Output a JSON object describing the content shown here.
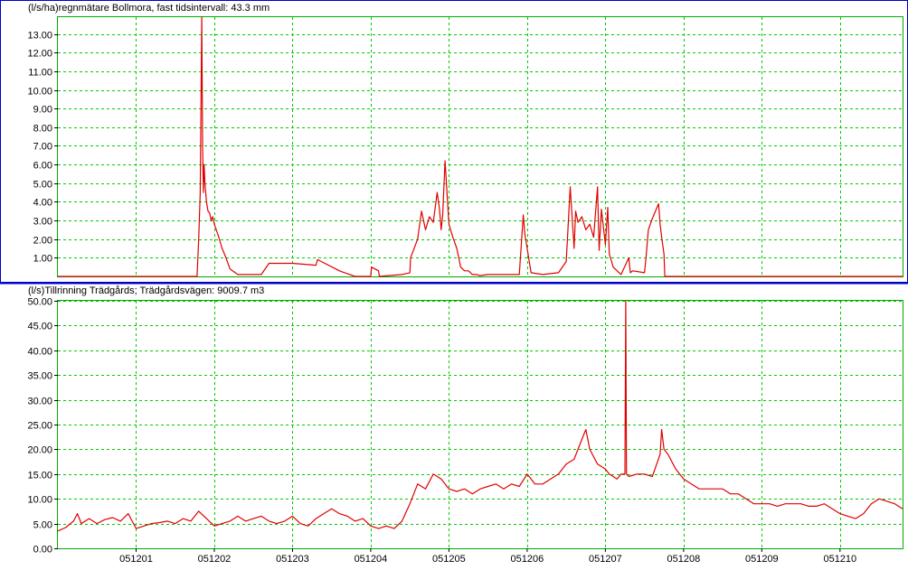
{
  "x_ticks": [
    "051201",
    "051202",
    "051203",
    "051204",
    "051205",
    "051206",
    "051207",
    "051208",
    "051209",
    "051210"
  ],
  "colors": {
    "series": "#e00000",
    "grid": "#00cc00",
    "panel_border": "#0000cc",
    "plot_frame": "#00aa00",
    "background": "#ffffff"
  },
  "chart_data": [
    {
      "type": "line",
      "title": "(l/s/ha)regnmätare Bollmora, fast tidsintervall: 43.3 mm",
      "xlabel": "",
      "ylabel": "l/s/ha",
      "xlim": [
        0,
        10.8
      ],
      "ylim": [
        0,
        13.9
      ],
      "yticks": [
        1,
        2,
        3,
        4,
        5,
        6,
        7,
        8,
        9,
        10,
        11,
        12,
        13
      ],
      "ytick_labels": [
        "1.00",
        "2.00",
        "3.00",
        "4.00",
        "5.00",
        "6.00",
        "7.00",
        "8.00",
        "9.00",
        "10.00",
        "11.00",
        "12.00",
        "13.00"
      ],
      "grid": true,
      "series": [
        {
          "x": [
            0,
            1.78,
            1.8,
            1.82,
            1.84,
            1.85,
            1.86,
            1.87,
            1.88,
            1.9,
            1.92,
            1.94,
            1.96,
            1.98,
            2.0,
            2.05,
            2.1,
            2.15,
            2.2,
            2.3,
            2.6,
            2.7,
            3.0,
            3.3,
            3.32,
            3.6,
            3.8,
            4.0,
            4.01,
            4.1,
            4.11,
            4.4,
            4.5,
            4.51,
            4.6,
            4.65,
            4.7,
            4.75,
            4.8,
            4.85,
            4.88,
            4.9,
            4.92,
            4.95,
            5.0,
            5.05,
            5.1,
            5.15,
            5.2,
            5.25,
            5.3,
            5.35,
            5.4,
            5.5,
            5.7,
            5.9,
            5.95,
            5.97,
            6.0,
            6.05,
            6.2,
            6.4,
            6.5,
            6.55,
            6.6,
            6.62,
            6.65,
            6.7,
            6.75,
            6.8,
            6.85,
            6.9,
            6.92,
            6.95,
            7.0,
            7.03,
            7.05,
            7.08,
            7.1,
            7.15,
            7.2,
            7.3,
            7.32,
            7.35,
            7.5,
            7.52,
            7.55,
            7.6,
            7.68,
            7.7,
            7.72,
            7.75,
            7.76,
            8.0,
            9.0,
            10.0,
            10.8
          ],
          "y": [
            0,
            0,
            2,
            4.5,
            13.9,
            7,
            4.5,
            6,
            5,
            4,
            3.5,
            3.4,
            3,
            3.2,
            2.8,
            2.2,
            1.5,
            1,
            0.4,
            0.1,
            0.1,
            0.7,
            0.7,
            0.6,
            0.9,
            0.3,
            0,
            0,
            0.5,
            0.3,
            0,
            0.1,
            0.2,
            1,
            2,
            3.5,
            2.5,
            3.2,
            2.9,
            4.5,
            3.6,
            2.5,
            3.3,
            6.2,
            2.8,
            2.1,
            1.5,
            0.5,
            0.3,
            0.3,
            0.1,
            0.1,
            0.05,
            0.1,
            0.1,
            0.1,
            3.3,
            2.3,
            1.5,
            0.2,
            0.1,
            0.2,
            0.8,
            4.8,
            1.5,
            3.5,
            2.9,
            3.2,
            2.5,
            2.8,
            2.1,
            4.8,
            1.4,
            3.6,
            1.7,
            3.7,
            1.2,
            0.8,
            0.5,
            0.3,
            0.1,
            1,
            0.2,
            0.3,
            0.2,
            1,
            2.5,
            3.1,
            3.9,
            2.8,
            2.1,
            1.2,
            0,
            0,
            0,
            0,
            0
          ]
        }
      ]
    },
    {
      "type": "line",
      "title": "(l/s)Tillrinning Trädgårds; Trädgårdsvägen: 9009.7 m3",
      "xlabel": "",
      "ylabel": "l/s",
      "xlim": [
        0,
        10.8
      ],
      "ylim": [
        0,
        50
      ],
      "yticks": [
        0,
        5,
        10,
        15,
        20,
        25,
        30,
        35,
        40,
        45,
        50
      ],
      "ytick_labels": [
        "0.00",
        "5.00",
        "10.00",
        "15.00",
        "20.00",
        "25.00",
        "30.00",
        "35.00",
        "40.00",
        "45.00",
        "50.00"
      ],
      "grid": true,
      "series": [
        {
          "x": [
            0,
            0.1,
            0.2,
            0.25,
            0.3,
            0.4,
            0.5,
            0.6,
            0.7,
            0.8,
            0.9,
            1.0,
            1.1,
            1.2,
            1.3,
            1.4,
            1.5,
            1.6,
            1.7,
            1.8,
            1.9,
            2.0,
            2.1,
            2.2,
            2.3,
            2.4,
            2.5,
            2.6,
            2.7,
            2.8,
            2.9,
            3.0,
            3.1,
            3.2,
            3.3,
            3.4,
            3.5,
            3.6,
            3.7,
            3.8,
            3.9,
            4.0,
            4.1,
            4.2,
            4.3,
            4.4,
            4.5,
            4.6,
            4.7,
            4.8,
            4.9,
            5.0,
            5.1,
            5.2,
            5.3,
            5.4,
            5.5,
            5.6,
            5.7,
            5.8,
            5.9,
            6.0,
            6.1,
            6.2,
            6.3,
            6.4,
            6.5,
            6.6,
            6.65,
            6.7,
            6.75,
            6.8,
            6.9,
            7.0,
            7.05,
            7.1,
            7.15,
            7.2,
            7.25,
            7.26,
            7.27,
            7.3,
            7.4,
            7.5,
            7.6,
            7.7,
            7.72,
            7.75,
            7.8,
            7.9,
            8.0,
            8.1,
            8.2,
            8.3,
            8.4,
            8.5,
            8.6,
            8.7,
            8.8,
            8.9,
            9.0,
            9.1,
            9.2,
            9.3,
            9.4,
            9.5,
            9.6,
            9.7,
            9.8,
            9.9,
            10.0,
            10.1,
            10.2,
            10.3,
            10.4,
            10.5,
            10.6,
            10.7,
            10.8
          ],
          "y": [
            3.5,
            4.2,
            5.5,
            7,
            5,
            6,
            5,
            5.8,
            6.2,
            5.5,
            7,
            4,
            4.5,
            5,
            5.2,
            5.5,
            5,
            6,
            5.5,
            7.5,
            6,
            4.5,
            5,
            5.5,
            6.5,
            5.5,
            6,
            6.5,
            5.5,
            5,
            5.5,
            6.5,
            5,
            4.5,
            6,
            7,
            8,
            7,
            6.5,
            5.5,
            6,
            4.5,
            4,
            4.5,
            4,
            5.5,
            9,
            13,
            12,
            15,
            14,
            12,
            11.5,
            12,
            11,
            12,
            12.5,
            13,
            12,
            13,
            12.5,
            15,
            13,
            13,
            14,
            15,
            17,
            18,
            20,
            22,
            24,
            20,
            17,
            16,
            15,
            14.5,
            14,
            15,
            15,
            50,
            15,
            14.5,
            15,
            15,
            14.5,
            19,
            24,
            20,
            19,
            16,
            14,
            13,
            12,
            12,
            12,
            12,
            11,
            11,
            10,
            9,
            9,
            9,
            8.5,
            9,
            9,
            9,
            8.5,
            8.5,
            9,
            8,
            7,
            6.5,
            6,
            7,
            9,
            10,
            9.5,
            9,
            8
          ]
        }
      ]
    }
  ]
}
